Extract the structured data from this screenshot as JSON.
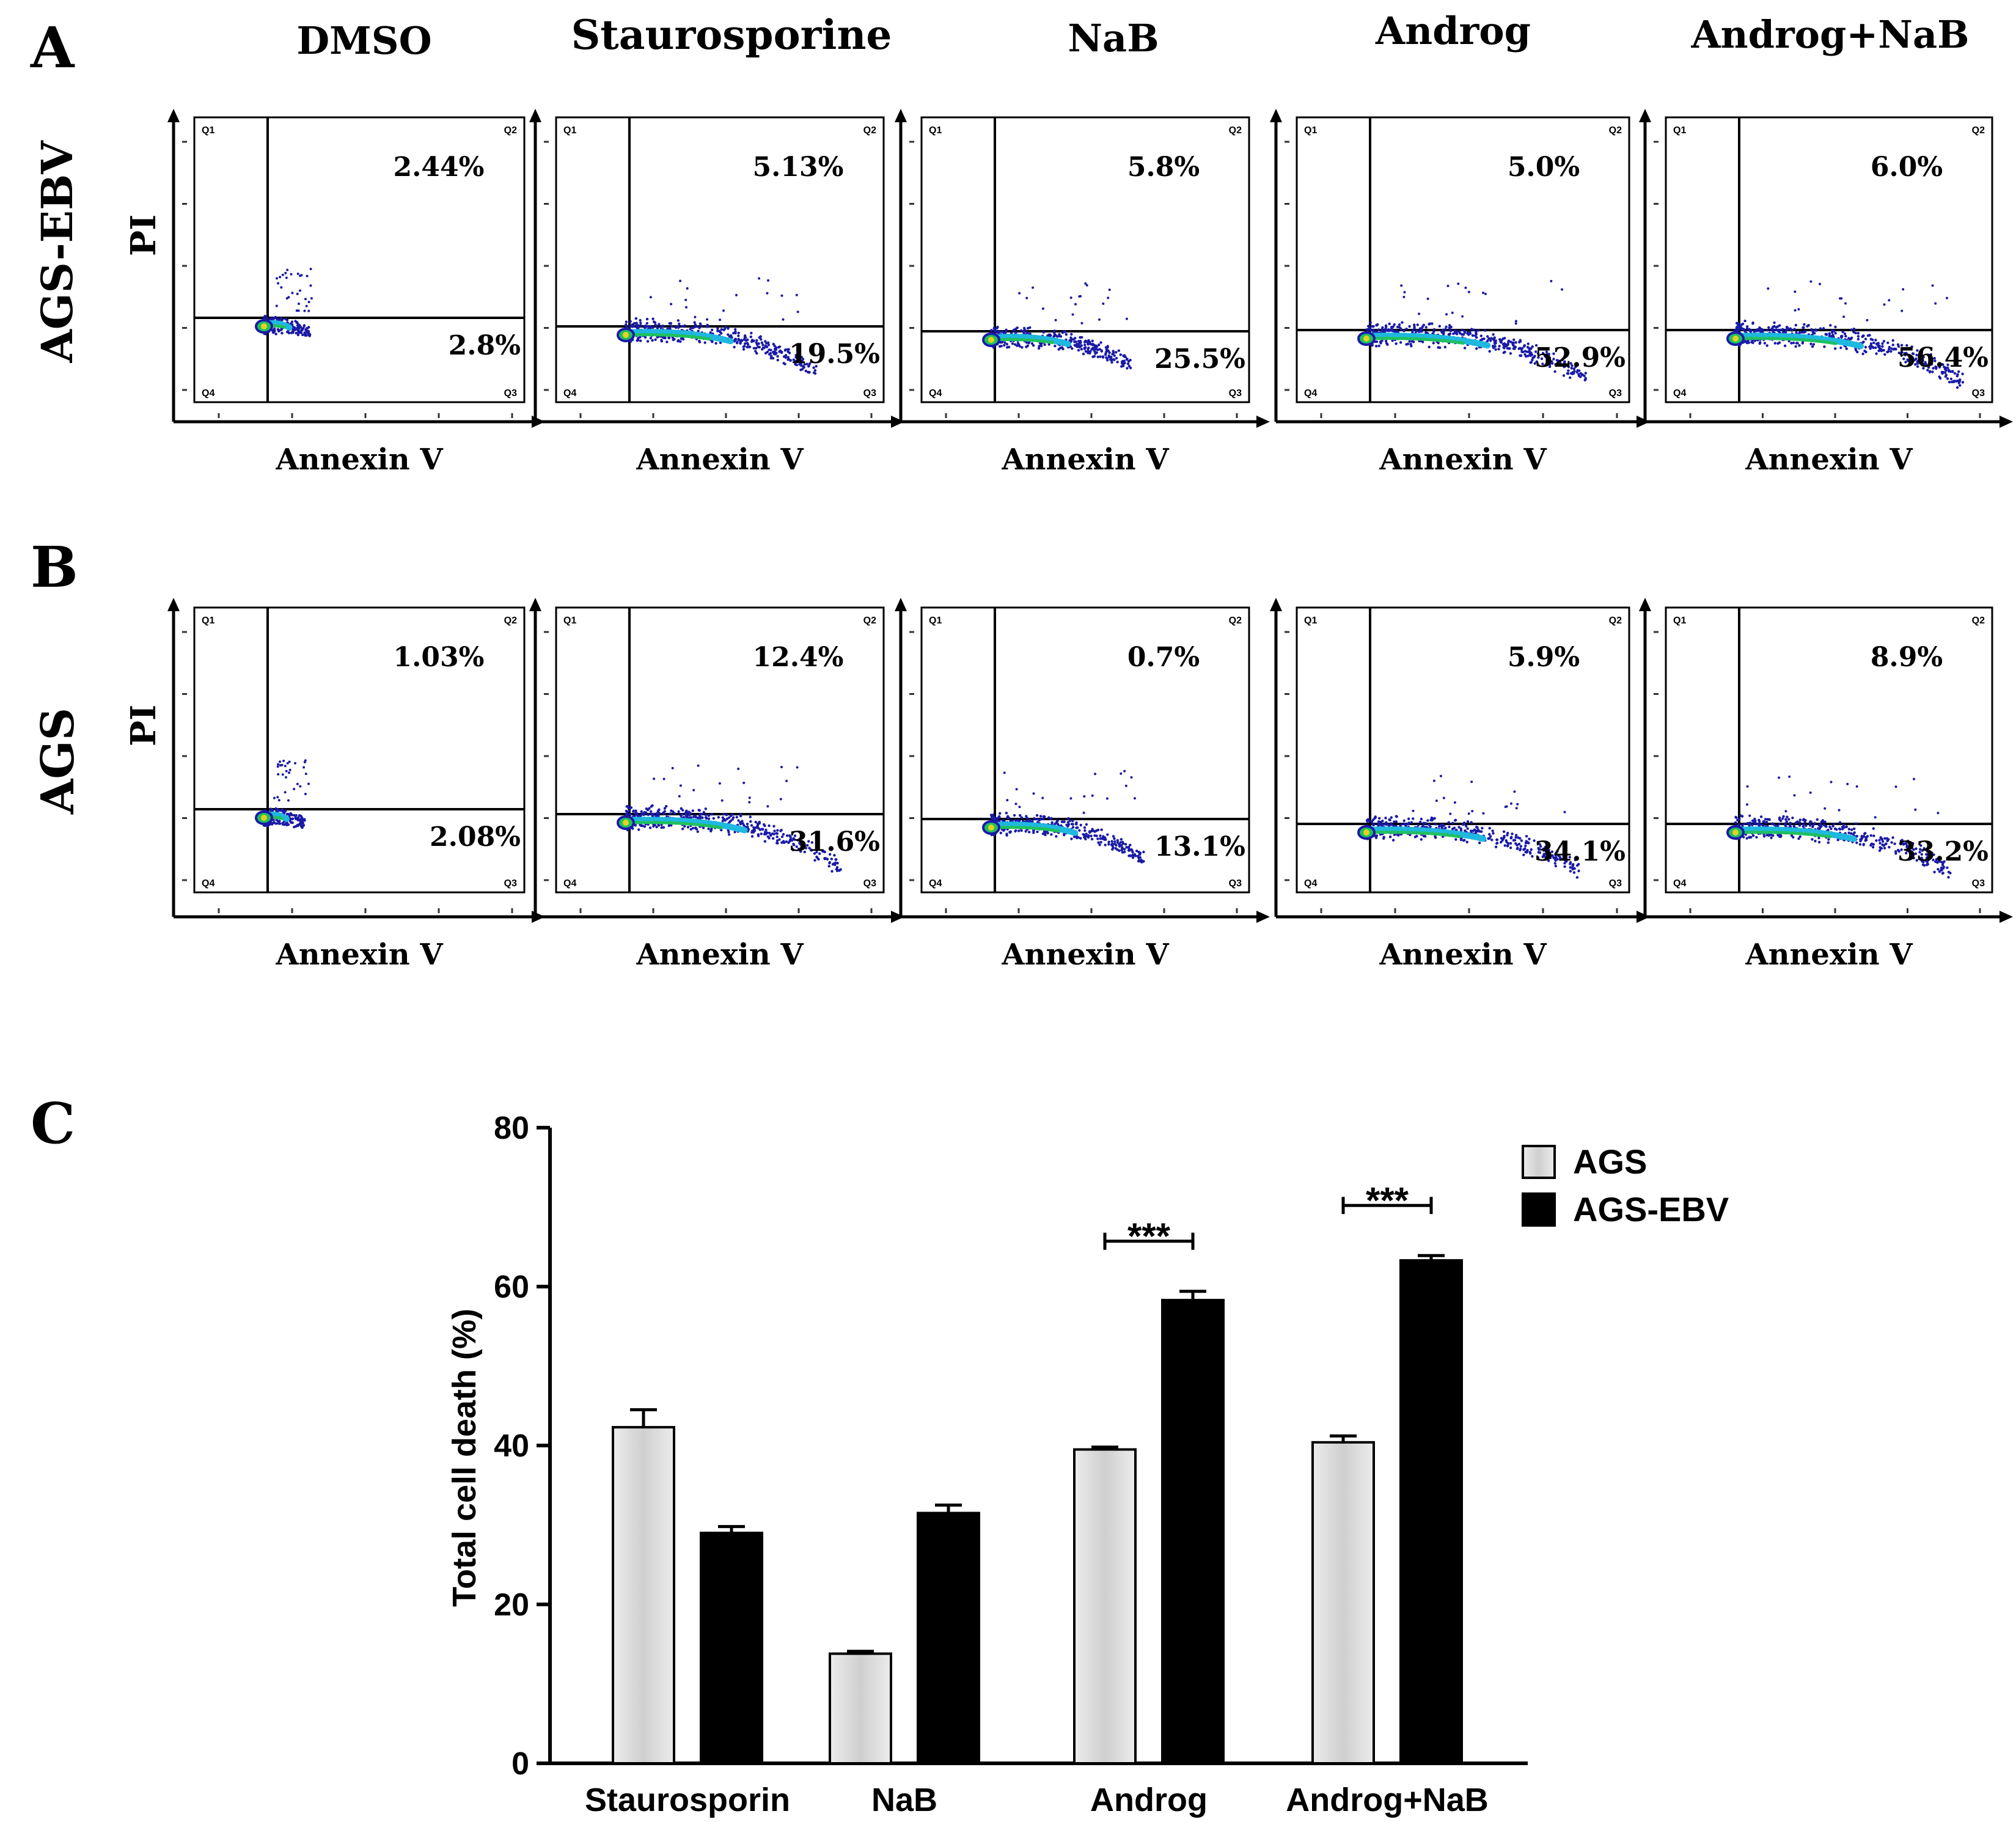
{
  "colors": {
    "axis": "#000000",
    "ags_bar": "#d9d9d9",
    "ags_bar_edge": "#000000",
    "ags_ebv_bar": "#000000",
    "dot_dark": "#1a1aa6",
    "dot_mid": "#1fb8e0",
    "dot_core": "#20c060",
    "dot_hot": "#e6d21c"
  },
  "panels": {
    "a_letter": "A",
    "b_letter": "B",
    "c_letter": "C",
    "row_a_label": "AGS-EBV",
    "row_b_label": "AGS",
    "y_label": "PI",
    "x_label": "Annexin V",
    "quadrant_labels": [
      "Q1",
      "Q2",
      "Q3",
      "Q4"
    ],
    "treatments": [
      "DMSO",
      "Staurosporine",
      "NaB",
      "Androg",
      "Androg+NaB"
    ],
    "row_a_q2": [
      "2.44%",
      "5.13%",
      "5.8%",
      "5.0%",
      "6.0%"
    ],
    "row_a_q3": [
      "2.8%",
      "19.5%",
      "25.5%",
      "52.9%",
      "56.4%"
    ],
    "row_b_q2": [
      "1.03%",
      "12.4%",
      "0.7%",
      "5.9%",
      "8.9%"
    ],
    "row_b_q3": [
      "2.08%",
      "31.6%",
      "13.1%",
      "34.1%",
      "33.2%"
    ]
  },
  "chart_data": {
    "type": "bar",
    "categories": [
      "Staurosporin",
      "NaB",
      "Androg",
      "Androg+NaB"
    ],
    "series": [
      {
        "name": "AGS",
        "values": [
          42.3,
          13.8,
          39.5,
          40.4
        ],
        "errors": [
          2.2,
          0.3,
          0.3,
          0.8
        ]
      },
      {
        "name": "AGS-EBV",
        "values": [
          29.0,
          31.5,
          58.3,
          63.3
        ],
        "errors": [
          0.8,
          1.0,
          1.1,
          0.6
        ]
      }
    ],
    "ylabel": "Total cell death (%)",
    "xlabel": "",
    "ylim": [
      0,
      80
    ],
    "yticks": [
      0,
      20,
      40,
      60,
      80
    ],
    "significance": [
      {
        "category": "Androg",
        "label": "***"
      },
      {
        "category": "Androg+NaB",
        "label": "***"
      }
    ],
    "legend_position": "top-right"
  }
}
